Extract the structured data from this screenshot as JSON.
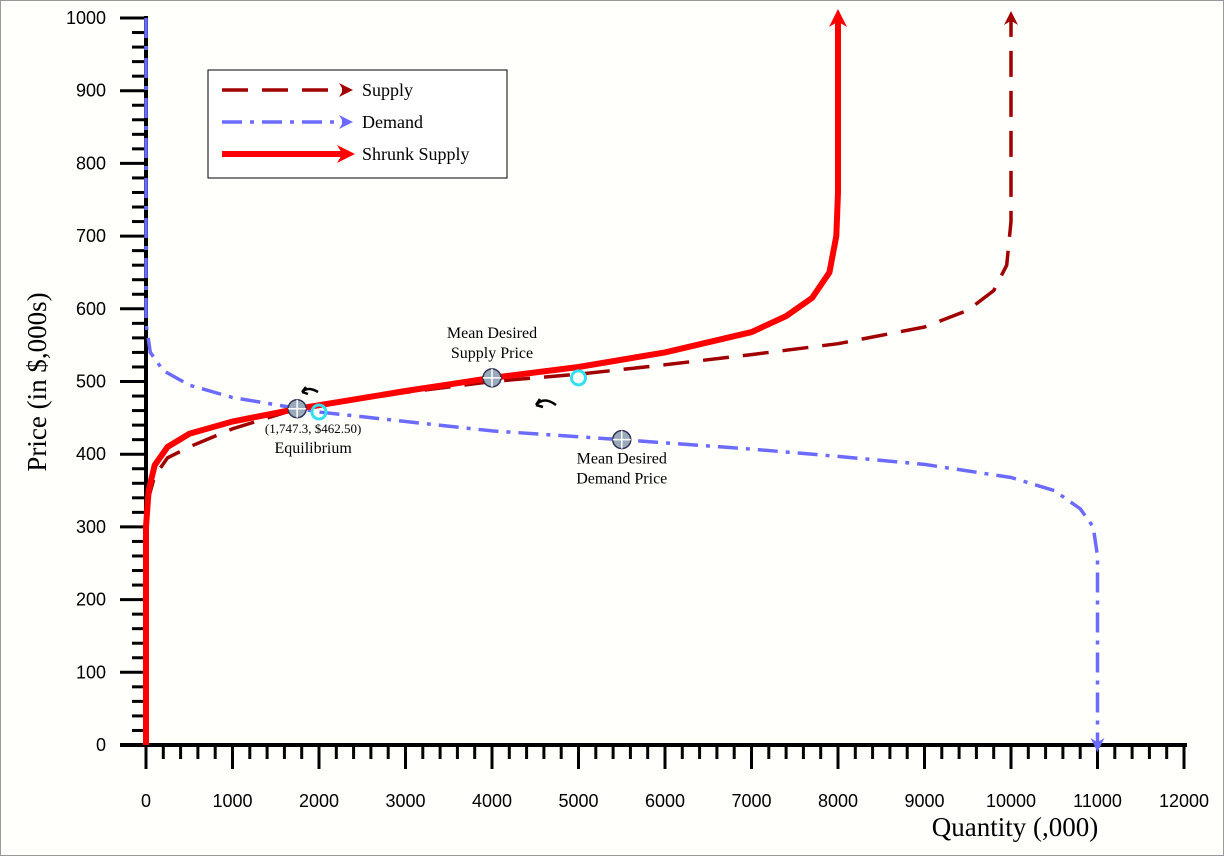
{
  "chart_data": {
    "type": "line",
    "xlabel": "Quantity (,000)",
    "ylabel": "Price (in $,000s)",
    "xlim": [
      0,
      12000
    ],
    "ylim": [
      0,
      1000
    ],
    "xticks": [
      0,
      1000,
      2000,
      3000,
      4000,
      5000,
      6000,
      7000,
      8000,
      9000,
      10000,
      11000,
      12000
    ],
    "yticks": [
      0,
      100,
      200,
      300,
      400,
      500,
      600,
      700,
      800,
      900,
      1000
    ],
    "legend": "upper left",
    "series": [
      {
        "name": "Supply",
        "color": "#a00000",
        "style": "dashed",
        "x": [
          0,
          0,
          30,
          100,
          250,
          500,
          1000,
          1747.3,
          3000,
          4000,
          5000,
          6000,
          7000,
          8000,
          9000,
          9500,
          9800,
          9950,
          10000,
          10000
        ],
        "values": [
          0,
          300,
          340,
          370,
          395,
          410,
          435,
          462.5,
          485,
          500,
          510,
          523,
          537,
          552,
          575,
          598,
          625,
          660,
          720,
          1000
        ]
      },
      {
        "name": "Demand",
        "color": "#6b6bff",
        "style": "dashdot",
        "x": [
          0,
          0,
          50,
          200,
          500,
          1000,
          2000,
          3000,
          4000,
          5500,
          7000,
          8000,
          9000,
          10000,
          10500,
          10800,
          10950,
          11000,
          11000
        ],
        "values": [
          1000,
          580,
          540,
          515,
          495,
          478,
          458,
          445,
          432,
          420,
          407,
          397,
          386,
          368,
          350,
          325,
          300,
          260,
          0
        ]
      },
      {
        "name": "Shrunk Supply",
        "color": "#ff0000",
        "style": "solid",
        "x": [
          0,
          0,
          30,
          100,
          250,
          500,
          1000,
          1747.3,
          3000,
          4000,
          5000,
          6000,
          7000,
          7400,
          7700,
          7900,
          7980,
          8000,
          8000
        ],
        "values": [
          0,
          300,
          350,
          385,
          410,
          428,
          445,
          462.5,
          487,
          505,
          520,
          540,
          568,
          590,
          615,
          650,
          700,
          760,
          1000
        ]
      }
    ],
    "points": [
      {
        "x": 1747.3,
        "y": 462.5,
        "label": [
          "(1,747.3, $462.50)",
          "Equilibrium"
        ],
        "label_position": "below"
      },
      {
        "x": 4000,
        "y": 505,
        "label": [
          "Mean Desired",
          "Supply Price"
        ],
        "label_position": "above"
      },
      {
        "x": 5500,
        "y": 420,
        "label": [
          "Mean Desired",
          "Demand Price"
        ],
        "label_position": "below"
      }
    ],
    "markers": [
      {
        "x": 2000,
        "y": 458
      },
      {
        "x": 5000,
        "y": 505
      }
    ]
  }
}
